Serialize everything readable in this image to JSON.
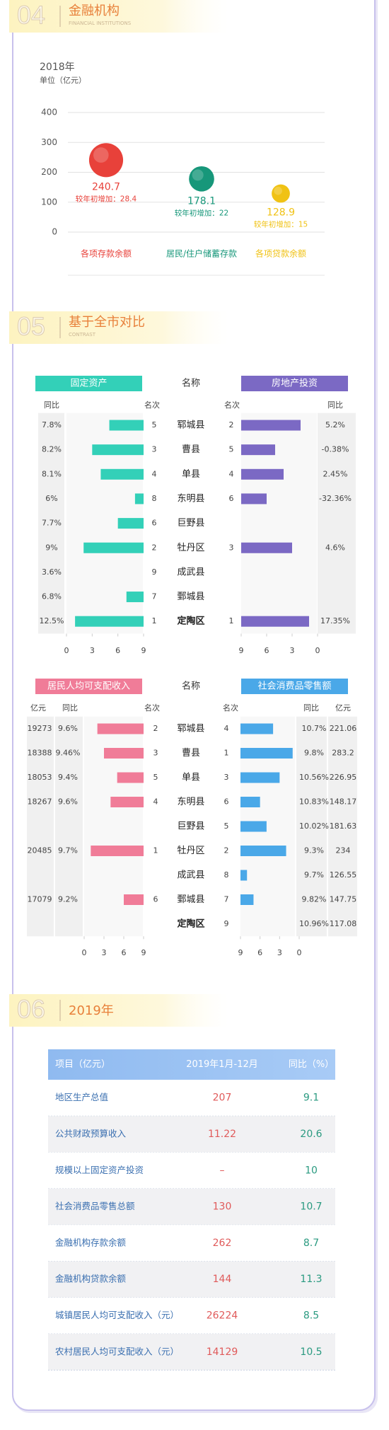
{
  "sections": [
    {
      "number": "04",
      "title": "金融机构",
      "subtitle": "FINANCIAL INSTITUTIONS"
    },
    {
      "number": "05",
      "title": "基于全市对比",
      "subtitle": "CONTRAST"
    },
    {
      "number": "06",
      "title": "2019年"
    }
  ],
  "chart_data": [
    {
      "type": "bubble",
      "title": "2018年",
      "subtitle": "单位（亿元）",
      "categories": [
        "各项存款余额",
        "居民/住户储蓄存款",
        "各项贷款余额"
      ],
      "values": [
        240.7,
        178.1,
        128.9
      ],
      "increase_label": "较年初增加：",
      "increase": [
        28.4,
        22,
        15
      ],
      "colors": [
        "#e8413a",
        "#17977a",
        "#f0c214"
      ],
      "ylim": [
        0,
        400
      ],
      "yticks": [
        0,
        100,
        200,
        300,
        400
      ],
      "grid": true
    },
    {
      "type": "butterfly",
      "header": "名称",
      "categories": [
        "郓城县",
        "曹县",
        "单县",
        "东明县",
        "巨野县",
        "牡丹区",
        "成武县",
        "鄄城县",
        "定陶区"
      ],
      "highlight": 8,
      "left": {
        "title": "固定资产",
        "color": "#33d0b8",
        "columns": [
          "同比",
          "名次"
        ],
        "yoy": [
          "7.8%",
          "8.2%",
          "8.1%",
          "6%",
          "7.7%",
          "9%",
          "3.6%",
          "6.8%",
          "12.5%"
        ],
        "values": [
          5,
          3,
          4,
          8,
          6,
          2,
          9,
          7,
          1
        ],
        "xlim": [
          0,
          9
        ],
        "xticks": [
          0,
          3,
          6,
          9
        ]
      },
      "right": {
        "title": "房地产投资",
        "color": "#7b69c4",
        "columns": [
          "名次",
          "同比"
        ],
        "yoy": [
          "5.2%",
          "-0.38%",
          "2.45%",
          "-32.36%",
          null,
          "4.6%",
          null,
          null,
          "17.35%"
        ],
        "values": [
          2,
          5,
          4,
          6,
          null,
          3,
          null,
          null,
          1
        ],
        "xlim": [
          0,
          9
        ],
        "xticks": [
          9,
          6,
          3,
          0
        ]
      }
    },
    {
      "type": "butterfly",
      "header": "名称",
      "categories": [
        "郓城县",
        "曹县",
        "单县",
        "东明县",
        "巨野县",
        "牡丹区",
        "成武县",
        "鄄城县",
        "定陶区"
      ],
      "highlight": 8,
      "left": {
        "title": "居民人均可支配收入",
        "color": "#f07c98",
        "columns": [
          "亿元",
          "同比",
          "名次"
        ],
        "amount": [
          19273,
          18388,
          18053,
          18267,
          null,
          20485,
          null,
          17079,
          null
        ],
        "yoy": [
          "9.6%",
          "9.46%",
          "9.4%",
          "9.6%",
          null,
          "9.7%",
          null,
          "9.2%",
          null
        ],
        "values": [
          2,
          3,
          5,
          4,
          null,
          1,
          null,
          6,
          null
        ],
        "xlim": [
          0,
          9
        ],
        "xticks": [
          0,
          3,
          6,
          9
        ]
      },
      "right": {
        "title": "社会消费品零售额",
        "color": "#4aa8e8",
        "columns": [
          "名次",
          "同比",
          "亿元"
        ],
        "values": [
          4,
          1,
          3,
          6,
          5,
          2,
          8,
          7,
          9
        ],
        "yoy": [
          "10.7%",
          "9.8%",
          "10.56%",
          "10.83%",
          "10.02%",
          "9.3%",
          "9.7%",
          "9.82%",
          "10.96%"
        ],
        "amount": [
          221.06,
          283.2,
          226.95,
          148.17,
          181.63,
          234,
          126.55,
          147.75,
          117.08
        ],
        "xlim": [
          0,
          9
        ],
        "xticks": [
          9,
          6,
          3,
          0
        ]
      }
    }
  ],
  "table": {
    "header": [
      "项目（亿元）",
      "2019年1月-12月",
      "同比（%）"
    ],
    "rows": [
      [
        "地区生产总值",
        "207",
        "9.1"
      ],
      [
        "公共财政预算收入",
        "11.22",
        "20.6"
      ],
      [
        "规模以上固定资产投资",
        "–",
        "10"
      ],
      [
        "社会消费品零售总额",
        "130",
        "10.7"
      ],
      [
        "金融机构存款余额",
        "262",
        "8.7"
      ],
      [
        "金融机构贷款余额",
        "144",
        "11.3"
      ],
      [
        "城镇居民人均可支配收入（元）",
        "26224",
        "8.5"
      ],
      [
        "农村居民人均可支配收入（元）",
        "14129",
        "10.5"
      ]
    ]
  }
}
